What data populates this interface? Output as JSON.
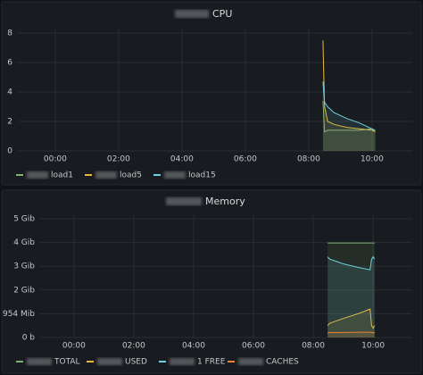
{
  "chart_data": [
    {
      "type": "line",
      "title": "CPU",
      "x": [
        8.45,
        8.5,
        8.6,
        8.8,
        9.2,
        9.6,
        10.0,
        10.1
      ],
      "series": [
        {
          "name": "load1",
          "color": "#7eb26d",
          "values": [
            3.4,
            1.3,
            1.4,
            1.4,
            1.4,
            1.4,
            1.5,
            1.3
          ]
        },
        {
          "name": "load5",
          "color": "#eab839",
          "values": [
            7.5,
            3.0,
            2.0,
            1.8,
            1.6,
            1.5,
            1.4,
            1.3
          ]
        },
        {
          "name": "load15",
          "color": "#6ed0e0",
          "values": [
            4.7,
            3.3,
            3.0,
            2.6,
            2.2,
            1.9,
            1.5,
            1.4
          ]
        }
      ],
      "xlim": [
        -1.18,
        11.27
      ],
      "xticks": [
        {
          "value": 0,
          "label": "00:00"
        },
        {
          "value": 2,
          "label": "02:00"
        },
        {
          "value": 4,
          "label": "04:00"
        },
        {
          "value": 6,
          "label": "06:00"
        },
        {
          "value": 8,
          "label": "08:00"
        },
        {
          "value": 10,
          "label": "10:00"
        }
      ],
      "ylim": [
        0,
        8
      ],
      "yticks": [
        0,
        2,
        4,
        6,
        8
      ],
      "grid": true
    },
    {
      "type": "line",
      "title": "Memory",
      "x": [
        8.48,
        8.55,
        9.0,
        9.5,
        9.9,
        9.95,
        10.0,
        10.05
      ],
      "series": [
        {
          "name": "TOTAL",
          "color": "#7eb26d",
          "values": [
            3980000000,
            3980000000,
            3980000000,
            3980000000,
            3980000000,
            3980000000,
            3980000000,
            3980000000
          ]
        },
        {
          "name": "USED",
          "color": "#eab839",
          "values": [
            500000000,
            600000000,
            800000000,
            1000000000,
            1200000000,
            500000000,
            400000000,
            500000000
          ]
        },
        {
          "name": "1 FREE",
          "color": "#6ed0e0",
          "values": [
            3400000000,
            3300000000,
            3100000000,
            2950000000,
            2850000000,
            3300000000,
            3400000000,
            3300000000
          ]
        },
        {
          "name": "CACHES",
          "color": "#ef843c",
          "values": [
            200000000,
            210000000,
            210000000,
            220000000,
            220000000,
            210000000,
            200000000,
            210000000
          ]
        }
      ],
      "xlim": [
        -1.13,
        11.31
      ],
      "xticks": [
        {
          "value": 0,
          "label": "00:00"
        },
        {
          "value": 2,
          "label": "02:00"
        },
        {
          "value": 4,
          "label": "04:00"
        },
        {
          "value": 6,
          "label": "06:00"
        },
        {
          "value": 8,
          "label": "08:00"
        },
        {
          "value": 10,
          "label": "10:00"
        }
      ],
      "ylim": [
        0,
        5000000000
      ],
      "yticks": [
        {
          "value": 0,
          "label": "0 b"
        },
        {
          "value": 1000000000,
          "label": "954 Mib"
        },
        {
          "value": 2000000000,
          "label": "2 Gib"
        },
        {
          "value": 3000000000,
          "label": "3 Gib"
        },
        {
          "value": 4000000000,
          "label": "4 Gib"
        },
        {
          "value": 5000000000,
          "label": "5 Gib"
        }
      ],
      "grid": true
    }
  ]
}
